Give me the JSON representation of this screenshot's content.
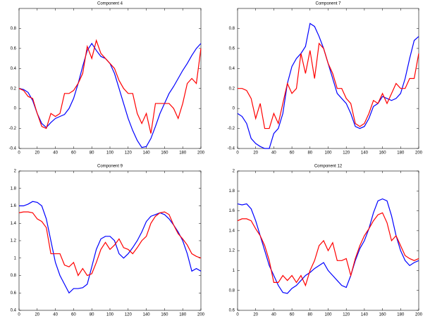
{
  "chart_data": [
    {
      "type": "line",
      "title": "Component 4",
      "x": [
        0,
        5,
        10,
        15,
        20,
        25,
        30,
        35,
        40,
        45,
        50,
        55,
        60,
        65,
        70,
        75,
        80,
        85,
        90,
        95,
        100,
        105,
        110,
        115,
        120,
        125,
        130,
        135,
        140,
        145,
        150,
        155,
        160,
        165,
        170,
        175,
        180,
        185,
        190,
        195,
        200
      ],
      "series": [
        {
          "color": "#0000ff",
          "values": [
            0.2,
            0.19,
            0.16,
            0.08,
            -0.05,
            -0.15,
            -0.19,
            -0.14,
            -0.1,
            -0.08,
            -0.06,
            0.0,
            0.1,
            0.25,
            0.42,
            0.58,
            0.65,
            0.58,
            0.52,
            0.5,
            0.45,
            0.35,
            0.2,
            0.05,
            -0.1,
            -0.22,
            -0.32,
            -0.39,
            -0.38,
            -0.3,
            -0.18,
            -0.05,
            0.05,
            0.15,
            0.22,
            0.3,
            0.38,
            0.45,
            0.53,
            0.6,
            0.65
          ]
        },
        {
          "color": "#ff0000",
          "values": [
            0.2,
            0.18,
            0.12,
            0.1,
            -0.05,
            -0.18,
            -0.2,
            -0.05,
            -0.08,
            -0.05,
            0.15,
            0.15,
            0.18,
            0.25,
            0.35,
            0.62,
            0.5,
            0.68,
            0.55,
            0.5,
            0.45,
            0.4,
            0.28,
            0.2,
            0.15,
            0.15,
            -0.05,
            -0.15,
            -0.05,
            -0.25,
            0.05,
            0.05,
            0.05,
            0.05,
            0.0,
            -0.1,
            0.05,
            0.25,
            0.3,
            0.25,
            0.6
          ]
        }
      ],
      "xlim": [
        0,
        200
      ],
      "xticks": [
        0,
        20,
        40,
        60,
        80,
        100,
        120,
        140,
        160,
        180,
        200
      ],
      "ylim": [
        -0.4,
        1
      ],
      "yticks": [
        -0.4,
        -0.2,
        0,
        0.2,
        0.4,
        0.6,
        0.8
      ]
    },
    {
      "type": "line",
      "title": "Component 7",
      "x": [
        0,
        5,
        10,
        15,
        20,
        25,
        30,
        35,
        40,
        45,
        50,
        55,
        60,
        65,
        70,
        75,
        80,
        85,
        90,
        95,
        100,
        105,
        110,
        115,
        120,
        125,
        130,
        135,
        140,
        145,
        150,
        155,
        160,
        165,
        170,
        175,
        180,
        185,
        190,
        195,
        200
      ],
      "series": [
        {
          "color": "#0000ff",
          "values": [
            -0.05,
            -0.08,
            -0.15,
            -0.3,
            -0.35,
            -0.38,
            -0.4,
            -0.4,
            -0.25,
            -0.2,
            -0.05,
            0.25,
            0.42,
            0.5,
            0.55,
            0.62,
            0.85,
            0.82,
            0.72,
            0.6,
            0.45,
            0.3,
            0.15,
            0.1,
            0.05,
            -0.05,
            -0.18,
            -0.2,
            -0.18,
            -0.1,
            0.02,
            0.05,
            0.12,
            0.1,
            0.08,
            0.1,
            0.15,
            0.3,
            0.5,
            0.68,
            0.72
          ]
        },
        {
          "color": "#ff0000",
          "values": [
            0.2,
            0.2,
            0.18,
            0.1,
            -0.1,
            0.05,
            -0.2,
            -0.2,
            -0.05,
            -0.15,
            0.05,
            0.25,
            0.15,
            0.2,
            0.55,
            0.35,
            0.58,
            0.3,
            0.65,
            0.6,
            0.45,
            0.35,
            0.2,
            0.2,
            0.1,
            0.05,
            -0.15,
            -0.18,
            -0.15,
            -0.05,
            0.08,
            0.05,
            0.15,
            0.05,
            0.15,
            0.25,
            0.2,
            0.2,
            0.3,
            0.3,
            0.55
          ]
        }
      ],
      "xlim": [
        0,
        200
      ],
      "xticks": [
        0,
        20,
        40,
        60,
        80,
        100,
        120,
        140,
        160,
        180,
        200
      ],
      "ylim": [
        -0.4,
        1
      ],
      "yticks": [
        -0.4,
        -0.2,
        0,
        0.2,
        0.4,
        0.6,
        0.8
      ]
    },
    {
      "type": "line",
      "title": "Component 9",
      "x": [
        0,
        5,
        10,
        15,
        20,
        25,
        30,
        35,
        40,
        45,
        50,
        55,
        60,
        65,
        70,
        75,
        80,
        85,
        90,
        95,
        100,
        105,
        110,
        115,
        120,
        125,
        130,
        135,
        140,
        145,
        150,
        155,
        160,
        165,
        170,
        175,
        180,
        185,
        190,
        195,
        200
      ],
      "series": [
        {
          "color": "#0000ff",
          "values": [
            1.6,
            1.6,
            1.62,
            1.65,
            1.64,
            1.6,
            1.45,
            1.2,
            0.95,
            0.8,
            0.7,
            0.6,
            0.65,
            0.65,
            0.66,
            0.7,
            0.9,
            1.1,
            1.22,
            1.25,
            1.25,
            1.2,
            1.05,
            1.0,
            1.05,
            1.12,
            1.2,
            1.3,
            1.42,
            1.48,
            1.5,
            1.52,
            1.5,
            1.45,
            1.38,
            1.3,
            1.2,
            1.05,
            0.85,
            0.88,
            0.85
          ]
        },
        {
          "color": "#ff0000",
          "values": [
            1.52,
            1.53,
            1.53,
            1.52,
            1.45,
            1.42,
            1.35,
            1.05,
            1.05,
            1.05,
            0.92,
            0.9,
            0.95,
            0.8,
            0.88,
            0.8,
            0.82,
            0.95,
            1.1,
            1.18,
            1.1,
            1.15,
            1.22,
            1.12,
            1.1,
            1.05,
            1.12,
            1.2,
            1.25,
            1.4,
            1.48,
            1.52,
            1.53,
            1.5,
            1.38,
            1.28,
            1.22,
            1.15,
            1.05,
            1.02,
            1.0
          ]
        }
      ],
      "xlim": [
        0,
        200
      ],
      "xticks": [
        0,
        20,
        40,
        60,
        80,
        100,
        120,
        140,
        160,
        180,
        200
      ],
      "ylim": [
        0.4,
        2
      ],
      "yticks": [
        0.4,
        0.6,
        0.8,
        1,
        1.2,
        1.4,
        1.6,
        1.8,
        2
      ]
    },
    {
      "type": "line",
      "title": "Component 12",
      "x": [
        0,
        5,
        10,
        15,
        20,
        25,
        30,
        35,
        40,
        45,
        50,
        55,
        60,
        65,
        70,
        75,
        80,
        85,
        90,
        95,
        100,
        105,
        110,
        115,
        120,
        125,
        130,
        135,
        140,
        145,
        150,
        155,
        160,
        165,
        170,
        175,
        180,
        185,
        190,
        195,
        200
      ],
      "series": [
        {
          "color": "#0000ff",
          "values": [
            1.67,
            1.66,
            1.67,
            1.62,
            1.5,
            1.35,
            1.2,
            1.05,
            0.95,
            0.85,
            0.78,
            0.77,
            0.82,
            0.85,
            0.9,
            0.95,
            0.98,
            1.02,
            1.05,
            1.08,
            1.0,
            0.95,
            0.9,
            0.85,
            0.83,
            0.95,
            1.1,
            1.22,
            1.3,
            1.42,
            1.58,
            1.7,
            1.72,
            1.7,
            1.55,
            1.35,
            1.2,
            1.1,
            1.05,
            1.08,
            1.1
          ]
        },
        {
          "color": "#ff0000",
          "values": [
            1.5,
            1.52,
            1.52,
            1.5,
            1.42,
            1.35,
            1.25,
            1.1,
            0.88,
            0.88,
            0.95,
            0.9,
            0.95,
            0.88,
            0.95,
            0.85,
            1.0,
            1.1,
            1.25,
            1.3,
            1.2,
            1.28,
            1.1,
            1.1,
            1.12,
            0.95,
            1.12,
            1.25,
            1.35,
            1.42,
            1.5,
            1.56,
            1.58,
            1.48,
            1.3,
            1.35,
            1.25,
            1.15,
            1.12,
            1.1,
            1.12
          ]
        }
      ],
      "xlim": [
        0,
        200
      ],
      "xticks": [
        0,
        20,
        40,
        60,
        80,
        100,
        120,
        140,
        160,
        180,
        200
      ],
      "ylim": [
        0.6,
        2
      ],
      "yticks": [
        0.6,
        0.8,
        1,
        1.2,
        1.4,
        1.6,
        1.8,
        2
      ]
    }
  ]
}
